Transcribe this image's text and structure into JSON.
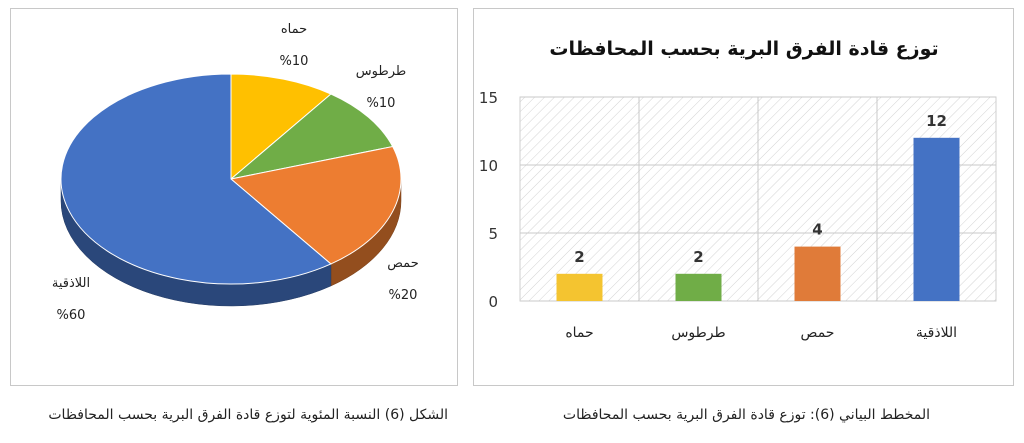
{
  "chart_data": [
    {
      "type": "pie",
      "title": "",
      "categories": [
        "حماه",
        "طرطوس",
        "حمص",
        "اللاذقية"
      ],
      "values": [
        10,
        10,
        20,
        60
      ],
      "value_labels": [
        "%10",
        "%10",
        "%20",
        "%60"
      ],
      "colors": [
        "#FFC000",
        "#70AD47",
        "#ED7D31",
        "#4472C4"
      ],
      "style": "3d"
    },
    {
      "type": "bar",
      "title": "توزع قادة الفرق البرية بحسب المحافظات",
      "categories": [
        "حماه",
        "طرطوس",
        "حمص",
        "اللاذقية"
      ],
      "values": [
        2,
        2,
        4,
        12
      ],
      "colors": [
        "#F4C430",
        "#70AD47",
        "#E07B39",
        "#4472C4"
      ],
      "ylim": [
        0,
        15
      ],
      "yticks": [
        0,
        5,
        10,
        15
      ],
      "ytick_labels": [
        "0",
        "5",
        "10",
        "15"
      ],
      "grid": true,
      "background": "hatched"
    }
  ],
  "captions": {
    "pie": "الشكل (6) النسبة المئوية لتوزع قادة الفرق البرية بحسب المحافظات",
    "bar": "المخطط البياني (6): توزع قادة الفرق البرية بحسب المحافظات"
  }
}
